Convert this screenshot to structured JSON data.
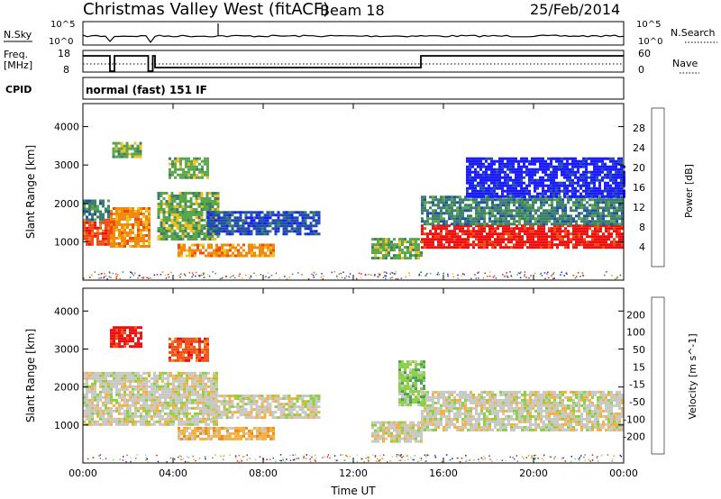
{
  "header": {
    "station": "Christmas Valley West (fitACF)",
    "beam": "Beam 18",
    "date": "25/Feb/2014"
  },
  "strip_labels": {
    "nsky": "N.Sky",
    "nsky_top": "10^5",
    "nsky_bottom": "10^0",
    "nsearch": "N.Search",
    "nsearch_top": "10^5",
    "nsearch_bottom": "10^0",
    "freq": "Freq.",
    "freq_unit": "[MHz]",
    "freq_top": "18",
    "freq_bottom": "8",
    "nave": "Nave",
    "nave_top": "60",
    "nave_bottom": "0",
    "cpid": "CPID",
    "cpid_value": "normal (fast) 151 IF"
  },
  "colors": {
    "scatter_gray": "#c0c0bc",
    "power_scale": [
      "#1a1aff",
      "#1f4fa8",
      "#3c7f6a",
      "#5aa64a",
      "#f0c020",
      "#f08a10",
      "#f04a10",
      "#ee1010"
    ],
    "velocity_scale": [
      "#e81010",
      "#f0501a",
      "#f08a18",
      "#f6b040",
      "#c8c8c4",
      "#8ad040",
      "#4a9f60",
      "#2050b0",
      "#1a1aa0"
    ]
  },
  "chart_data": [
    {
      "type": "heatmap",
      "name": "power",
      "ylabel": "Slant Range [km]",
      "yticks": [
        "1000",
        "2000",
        "3000",
        "4000"
      ],
      "ylim": [
        0,
        4600
      ],
      "xticks": [
        "00:00",
        "04:00",
        "08:00",
        "12:00",
        "16:00",
        "20:00",
        "00:00"
      ],
      "xlim_hours": [
        0,
        24
      ],
      "colorbar": {
        "label": "Power [dB]",
        "ticks": [
          "4",
          "8",
          "12",
          "16",
          "20",
          "24",
          "28"
        ]
      },
      "regions": [
        {
          "t": [
            0.0,
            1.2
          ],
          "r": [
            900,
            1600
          ],
          "level": 6
        },
        {
          "t": [
            0.0,
            1.2
          ],
          "r": [
            1600,
            2100
          ],
          "level": 2
        },
        {
          "t": [
            1.2,
            2.9
          ],
          "r": [
            900,
            1900
          ],
          "level": 5
        },
        {
          "t": [
            3.3,
            6.0
          ],
          "r": [
            1100,
            2300
          ],
          "level": 3
        },
        {
          "t": [
            1.3,
            2.6
          ],
          "r": [
            3200,
            3600
          ],
          "level": 3
        },
        {
          "t": [
            3.8,
            5.6
          ],
          "r": [
            2700,
            3200
          ],
          "level": 3
        },
        {
          "t": [
            4.2,
            8.5
          ],
          "r": [
            650,
            950
          ],
          "level": 5
        },
        {
          "t": [
            5.5,
            10.5
          ],
          "r": [
            1200,
            1800
          ],
          "level": 1
        },
        {
          "t": [
            12.8,
            15.0
          ],
          "r": [
            600,
            1100
          ],
          "level": 3
        },
        {
          "t": [
            15.0,
            24.0
          ],
          "r": [
            850,
            1450
          ],
          "level": 7
        },
        {
          "t": [
            15.0,
            24.0
          ],
          "r": [
            1450,
            2200
          ],
          "level": 2
        },
        {
          "t": [
            17.0,
            24.0
          ],
          "r": [
            2200,
            3200
          ],
          "level": 0
        }
      ]
    },
    {
      "type": "heatmap",
      "name": "velocity",
      "ylabel": "Slant Range [km]",
      "yticks": [
        "1000",
        "2000",
        "3000",
        "4000"
      ],
      "ylim": [
        0,
        4600
      ],
      "xticks": [
        "00:00",
        "04:00",
        "08:00",
        "12:00",
        "16:00",
        "20:00",
        "00:00"
      ],
      "xlabel": "Time UT",
      "xlim_hours": [
        0,
        24
      ],
      "colorbar": {
        "label": "Velocity [m s^-1]",
        "ticks": [
          "-200",
          "-100",
          "-50",
          "-15",
          "15",
          "50",
          "100",
          "200"
        ]
      },
      "regions": [
        {
          "t": [
            0.0,
            6.0
          ],
          "r": [
            1000,
            2400
          ],
          "level": 4
        },
        {
          "t": [
            1.2,
            2.6
          ],
          "r": [
            3100,
            3600
          ],
          "level": 0
        },
        {
          "t": [
            3.8,
            5.6
          ],
          "r": [
            2700,
            3300
          ],
          "level": 1
        },
        {
          "t": [
            4.2,
            8.5
          ],
          "r": [
            650,
            950
          ],
          "level": 3
        },
        {
          "t": [
            5.5,
            10.5
          ],
          "r": [
            1200,
            1800
          ],
          "level": 4
        },
        {
          "t": [
            12.8,
            15.0
          ],
          "r": [
            600,
            1100
          ],
          "level": 4
        },
        {
          "t": [
            15.0,
            24.0
          ],
          "r": [
            850,
            1900
          ],
          "level": 4
        },
        {
          "t": [
            14.0,
            15.2
          ],
          "r": [
            1500,
            2700
          ],
          "level": 5
        }
      ]
    }
  ]
}
